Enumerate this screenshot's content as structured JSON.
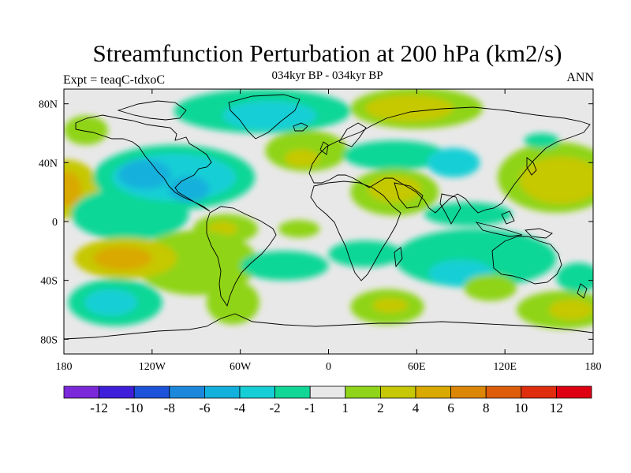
{
  "title": "Streamfunction Perturbation at 200 hPa (km2/s)",
  "subtitle": "034kyr BP - 034kyr BP",
  "left_label": "Expt = teaqC-tdxoC",
  "right_label": "ANN",
  "map": {
    "projection": "cylindrical-equidistant",
    "lon_range": [
      -180,
      180
    ],
    "lat_range": [
      -90,
      90
    ],
    "lon_ticks": [
      {
        "value": -180,
        "label": "180"
      },
      {
        "value": -120,
        "label": "120W"
      },
      {
        "value": -60,
        "label": "60W"
      },
      {
        "value": 0,
        "label": "0"
      },
      {
        "value": 60,
        "label": "60E"
      },
      {
        "value": 120,
        "label": "120E"
      },
      {
        "value": 180,
        "label": "180"
      }
    ],
    "lat_ticks": [
      {
        "value": 80,
        "label": "80N"
      },
      {
        "value": 40,
        "label": "40N"
      },
      {
        "value": 0,
        "label": "0"
      },
      {
        "value": -40,
        "label": "40S"
      },
      {
        "value": -80,
        "label": "80S"
      }
    ],
    "background_color": "#e8e8e8",
    "anomalies": [
      {
        "lon": -178,
        "lat": 22,
        "rlon": 22,
        "rlat": 20,
        "level": 4
      },
      {
        "lon": -178,
        "lat": 22,
        "rlon": 10,
        "rlat": 12,
        "level": 6
      },
      {
        "lon": -135,
        "lat": 5,
        "rlon": 40,
        "rlat": 18,
        "level": -2
      },
      {
        "lon": -105,
        "lat": 30,
        "rlon": 55,
        "rlat": 22,
        "level": -2
      },
      {
        "lon": -105,
        "lat": 30,
        "rlon": 42,
        "rlat": 16,
        "level": -4
      },
      {
        "lon": -125,
        "lat": 32,
        "rlon": 18,
        "rlat": 10,
        "level": -6
      },
      {
        "lon": -95,
        "lat": 22,
        "rlon": 14,
        "rlat": 9,
        "level": -6
      },
      {
        "lon": -45,
        "lat": 75,
        "rlon": 60,
        "rlat": 15,
        "level": -2
      },
      {
        "lon": -40,
        "lat": 72,
        "rlon": 32,
        "rlat": 10,
        "level": -4
      },
      {
        "lon": -165,
        "lat": 62,
        "rlon": 15,
        "rlat": 10,
        "level": 2
      },
      {
        "lon": 60,
        "lat": 77,
        "rlon": 45,
        "rlat": 14,
        "level": 2
      },
      {
        "lon": 55,
        "lat": 77,
        "rlon": 30,
        "rlat": 9,
        "level": 4
      },
      {
        "lon": -15,
        "lat": 48,
        "rlon": 28,
        "rlat": 14,
        "level": 2
      },
      {
        "lon": -18,
        "lat": 43,
        "rlon": 12,
        "rlat": 6,
        "level": 4
      },
      {
        "lon": 45,
        "lat": 45,
        "rlon": 35,
        "rlat": 10,
        "level": -2
      },
      {
        "lon": 85,
        "lat": 40,
        "rlon": 18,
        "rlat": 10,
        "level": -4
      },
      {
        "lon": 45,
        "lat": 20,
        "rlon": 30,
        "rlat": 16,
        "level": 2
      },
      {
        "lon": 45,
        "lat": 22,
        "rlon": 18,
        "rlat": 9,
        "level": 4
      },
      {
        "lon": 155,
        "lat": 30,
        "rlon": 40,
        "rlat": 24,
        "level": 2
      },
      {
        "lon": 158,
        "lat": 28,
        "rlon": 28,
        "rlat": 16,
        "level": 4
      },
      {
        "lon": 145,
        "lat": 55,
        "rlon": 12,
        "rlat": 5,
        "level": -2
      },
      {
        "lon": 95,
        "lat": 5,
        "rlon": 30,
        "rlat": 8,
        "level": -2
      },
      {
        "lon": 100,
        "lat": -25,
        "rlon": 55,
        "rlat": 20,
        "level": -2
      },
      {
        "lon": 90,
        "lat": -35,
        "rlon": 22,
        "rlat": 9,
        "level": -4
      },
      {
        "lon": -70,
        "lat": -5,
        "rlon": 22,
        "rlat": 10,
        "level": 2
      },
      {
        "lon": -72,
        "lat": -5,
        "rlon": 10,
        "rlat": 5,
        "level": 4
      },
      {
        "lon": -20,
        "lat": -5,
        "rlon": 14,
        "rlat": 6,
        "level": 2
      },
      {
        "lon": -90,
        "lat": -28,
        "rlon": 42,
        "rlat": 22,
        "level": 2
      },
      {
        "lon": -138,
        "lat": -25,
        "rlon": 35,
        "rlat": 14,
        "level": 4
      },
      {
        "lon": -140,
        "lat": -25,
        "rlon": 20,
        "rlat": 8,
        "level": 6
      },
      {
        "lon": -65,
        "lat": -55,
        "rlon": 18,
        "rlat": 15,
        "level": 2
      },
      {
        "lon": -145,
        "lat": -55,
        "rlon": 32,
        "rlat": 16,
        "level": -2
      },
      {
        "lon": -148,
        "lat": -55,
        "rlon": 18,
        "rlat": 9,
        "level": -4
      },
      {
        "lon": -30,
        "lat": -30,
        "rlon": 30,
        "rlat": 10,
        "level": -2
      },
      {
        "lon": 25,
        "lat": -22,
        "rlon": 25,
        "rlat": 9,
        "level": -2
      },
      {
        "lon": 40,
        "lat": -58,
        "rlon": 25,
        "rlat": 12,
        "level": 2
      },
      {
        "lon": 42,
        "lat": -57,
        "rlon": 12,
        "rlat": 5,
        "level": 4
      },
      {
        "lon": 160,
        "lat": -60,
        "rlon": 32,
        "rlat": 13,
        "level": 2
      },
      {
        "lon": 165,
        "lat": -60,
        "rlon": 15,
        "rlat": 7,
        "level": 4
      },
      {
        "lon": 170,
        "lat": -38,
        "rlon": 15,
        "rlat": 10,
        "level": -2
      },
      {
        "lon": 110,
        "lat": -45,
        "rlon": 18,
        "rlat": 9,
        "level": 2
      }
    ]
  },
  "colorbar": {
    "colors": [
      "#7b28db",
      "#3f1edb",
      "#1d52db",
      "#1c88dc",
      "#12b0dc",
      "#16cfd6",
      "#11d796",
      "#e8e8e8",
      "#8fd419",
      "#c6c806",
      "#d9a900",
      "#dc8606",
      "#de5d0a",
      "#df2d0d",
      "#de0012"
    ],
    "labels": [
      "-12",
      "-10",
      "-8",
      "-6",
      "-4",
      "-2",
      "-1",
      "1",
      "2",
      "4",
      "6",
      "8",
      "10",
      "12"
    ]
  }
}
